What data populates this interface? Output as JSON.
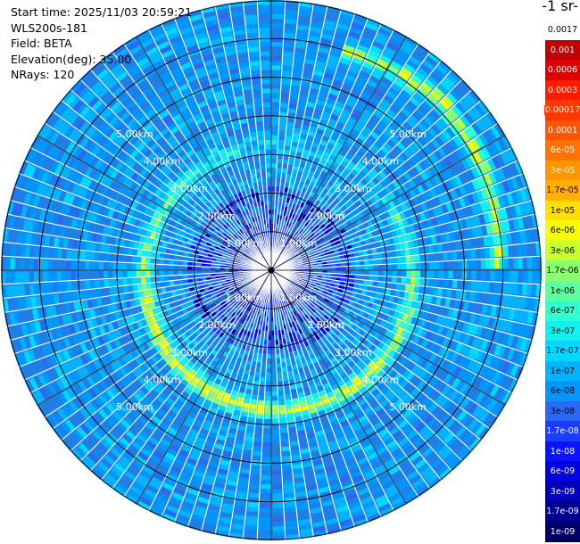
{
  "info": {
    "start_time": "Start time: 2025/11/03 20:59:21",
    "instrument": "WLS200s-181",
    "field": "Field: BETA",
    "elevation": "Elevation(deg): 35.00",
    "nrays": "NRays: 120"
  },
  "unit_label": "-1 sr-",
  "chart_data": {
    "type": "heatmap",
    "projection": "polar (PPI)",
    "field": "BETA",
    "elevation_deg": 35.0,
    "nrays": 120,
    "range_rings_km": [
      1,
      2,
      3,
      4,
      5
    ],
    "ring_labels": [
      "1.00km",
      "2.00km",
      "3.00km",
      "4.00km",
      "5.00km"
    ],
    "max_range_km": 7.0,
    "colorbar": {
      "labels": [
        "0.0017",
        "0.001",
        "0.0006",
        "0.0003",
        "0.00017",
        "0.0001",
        "6e-05",
        "3e-05",
        "1.7e-05",
        "1e-05",
        "6e-06",
        "3e-06",
        "1.7e-06",
        "1e-06",
        "6e-07",
        "3e-07",
        "1.7e-07",
        "1e-07",
        "6e-08",
        "3e-08",
        "1.7e-08",
        "1e-08",
        "6e-09",
        "3e-09",
        "1.7e-09",
        "1e-09"
      ],
      "colors": [
        "#ffffff",
        "#c00000",
        "#e00000",
        "#ff1a00",
        "#ff3800",
        "#ff5500",
        "#ff7400",
        "#ff9500",
        "#ffb000",
        "#ffe000",
        "#f5ff00",
        "#c8ff2e",
        "#8cff6e",
        "#5effa0",
        "#30ffd0",
        "#14f0f0",
        "#00d8ff",
        "#00b4ff",
        "#0096ff",
        "#2a6af0",
        "#1e3cff",
        "#0a14ff",
        "#0000e0",
        "#0000b8",
        "#000090",
        "#000068"
      ],
      "text_colors": [
        "#000000",
        "#ffffff",
        "#ffffff",
        "#ffffff",
        "#ffffff",
        "#ffffff",
        "#ffffff",
        "#ffffff",
        "#000000",
        "#000000",
        "#000000",
        "#000000",
        "#000000",
        "#000000",
        "#000000",
        "#000000",
        "#000000",
        "#000000",
        "#000000",
        "#000000",
        "#ffffff",
        "#ffffff",
        "#ffffff",
        "#ffffff",
        "#ffffff",
        "#ffffff"
      ]
    }
  }
}
